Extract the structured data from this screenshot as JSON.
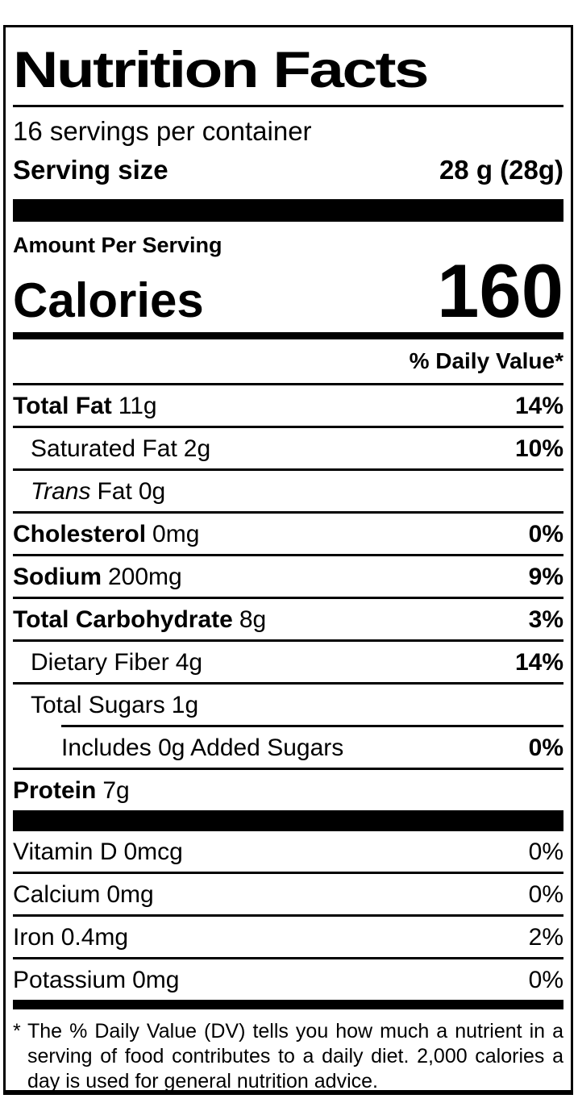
{
  "colors": {
    "ink": "#000000",
    "paper": "#ffffff"
  },
  "header": {
    "title": "Nutrition Facts",
    "servings_per_container": "16 servings per container",
    "serving_size_label": "Serving size",
    "serving_size_value": "28 g (28g)"
  },
  "calories": {
    "section_label": "Amount Per Serving",
    "label": "Calories",
    "value": "160"
  },
  "daily_value_header": "% Daily Value*",
  "nutrients": [
    {
      "name": "Total Fat",
      "amount": "11g",
      "dv": "14%"
    },
    {
      "name": "Saturated Fat",
      "amount": "2g",
      "dv": "10%"
    },
    {
      "name_italic": "Trans",
      "name_rest": "Fat",
      "amount": "0g",
      "dv": ""
    },
    {
      "name": "Cholesterol",
      "amount": "0mg",
      "dv": "0%"
    },
    {
      "name": "Sodium",
      "amount": "200mg",
      "dv": "9%"
    },
    {
      "name": "Total Carbohydrate",
      "amount": "8g",
      "dv": "3%"
    },
    {
      "name": "Dietary Fiber",
      "amount": "4g",
      "dv": "14%"
    },
    {
      "name": "Total Sugars",
      "amount": "1g",
      "dv": ""
    },
    {
      "name": "Includes 0g Added Sugars",
      "amount": "",
      "dv": "0%"
    },
    {
      "name": "Protein",
      "amount": "7g",
      "dv": ""
    }
  ],
  "micronutrients": [
    {
      "name": "Vitamin D",
      "amount": "0mcg",
      "dv": "0%"
    },
    {
      "name": "Calcium",
      "amount": "0mg",
      "dv": "0%"
    },
    {
      "name": "Iron",
      "amount": "0.4mg",
      "dv": "2%"
    },
    {
      "name": "Potassium",
      "amount": "0mg",
      "dv": "0%"
    }
  ],
  "footnote": {
    "marker": "*",
    "text": "The % Daily Value (DV) tells you how much a nutrient in a serving of food contributes to a daily diet. 2,000 calories a day is used for general nutrition advice."
  }
}
